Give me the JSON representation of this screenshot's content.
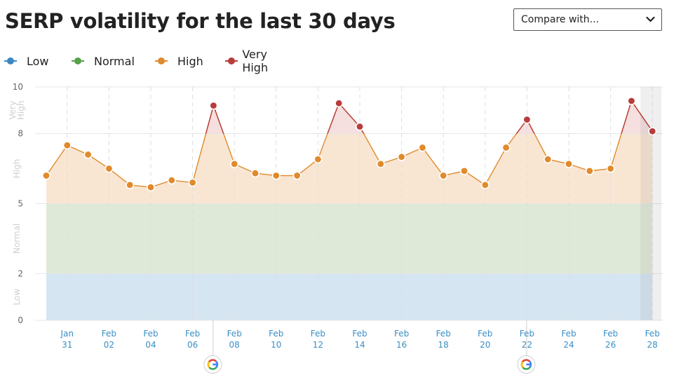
{
  "header": {
    "title": "SERP volatility for the last 30 days",
    "compare_label": "Compare with..."
  },
  "legend": [
    {
      "label": "Low",
      "color": "#3b87c4"
    },
    {
      "label": "Normal",
      "color": "#57a04a"
    },
    {
      "label": "High",
      "color": "#e08a2c"
    },
    {
      "label": "Very High",
      "color": "#b83c3a"
    }
  ],
  "icons": {
    "compare_chevron": "chevron-down-icon",
    "google_marker": "google-icon"
  },
  "chart_data": {
    "type": "line",
    "title": "SERP volatility for the last 30 days",
    "xlabel": "",
    "ylabel": "",
    "ylim": [
      0,
      10
    ],
    "y_ticks": [
      "0",
      "2",
      "5",
      "8",
      "10"
    ],
    "bands": [
      {
        "name": "Low",
        "range": [
          0,
          2
        ],
        "color": "#d5e5f2"
      },
      {
        "name": "Normal",
        "range": [
          2,
          5
        ],
        "color": "#dfe9d8"
      },
      {
        "name": "High",
        "range": [
          5,
          8
        ],
        "color": "#f9e6d2"
      },
      {
        "name": "Very High",
        "range": [
          8,
          10
        ],
        "color": "#f5dfdf"
      }
    ],
    "band_labels": [
      {
        "text": "Low",
        "y": 1
      },
      {
        "text": "Normal",
        "y": 3.5
      },
      {
        "text": "High",
        "y": 6.5
      },
      {
        "text": "Very High",
        "y": 9
      }
    ],
    "x_ticks": [
      {
        "top": "Jan",
        "bottom": "31",
        "index": 1
      },
      {
        "top": "Feb",
        "bottom": "02",
        "index": 3
      },
      {
        "top": "Feb",
        "bottom": "04",
        "index": 5
      },
      {
        "top": "Feb",
        "bottom": "06",
        "index": 7
      },
      {
        "top": "Feb",
        "bottom": "08",
        "index": 9
      },
      {
        "top": "Feb",
        "bottom": "10",
        "index": 11
      },
      {
        "top": "Feb",
        "bottom": "12",
        "index": 13
      },
      {
        "top": "Feb",
        "bottom": "14",
        "index": 15
      },
      {
        "top": "Feb",
        "bottom": "16",
        "index": 17
      },
      {
        "top": "Feb",
        "bottom": "18",
        "index": 19
      },
      {
        "top": "Feb",
        "bottom": "20",
        "index": 21
      },
      {
        "top": "Feb",
        "bottom": "22",
        "index": 23
      },
      {
        "top": "Feb",
        "bottom": "24",
        "index": 25
      },
      {
        "top": "Feb",
        "bottom": "26",
        "index": 27
      },
      {
        "top": "Feb",
        "bottom": "28",
        "index": 29
      }
    ],
    "x": [
      "Jan 30",
      "Jan 31",
      "Feb 01",
      "Feb 02",
      "Feb 03",
      "Feb 04",
      "Feb 05",
      "Feb 06",
      "Feb 07",
      "Feb 08",
      "Feb 09",
      "Feb 10",
      "Feb 11",
      "Feb 12",
      "Feb 13",
      "Feb 14",
      "Feb 15",
      "Feb 16",
      "Feb 17",
      "Feb 18",
      "Feb 19",
      "Feb 20",
      "Feb 21",
      "Feb 22",
      "Feb 23",
      "Feb 24",
      "Feb 25",
      "Feb 26",
      "Feb 27",
      "Feb 28"
    ],
    "series": [
      {
        "values": [
          6.2,
          7.5,
          7.1,
          6.5,
          5.8,
          5.7,
          6.0,
          5.9,
          9.2,
          6.7,
          6.3,
          6.2,
          6.2,
          6.9,
          9.3,
          8.3,
          6.7,
          7.0,
          7.4,
          6.2,
          6.4,
          5.8,
          7.4,
          8.6,
          6.9,
          6.7,
          6.4,
          6.5,
          9.4,
          8.1
        ]
      }
    ],
    "very_high_threshold": 8,
    "google_update_markers": [
      "Feb 07",
      "Feb 22"
    ],
    "highlight_last_day": "Feb 28",
    "grid": true
  }
}
